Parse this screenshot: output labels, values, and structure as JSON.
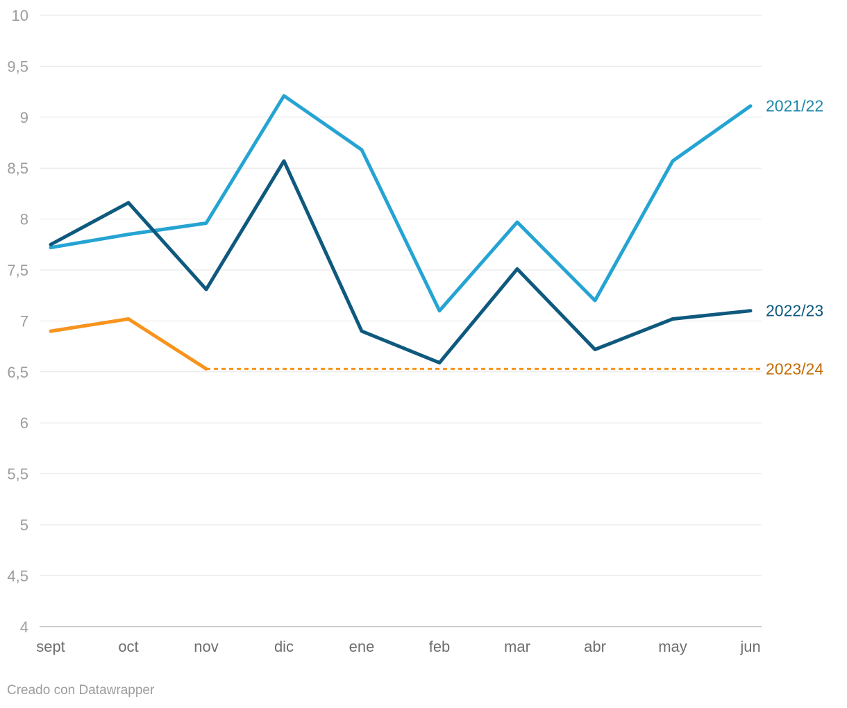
{
  "chart_data": {
    "type": "line",
    "title": "",
    "categories": [
      "sept",
      "oct",
      "nov",
      "dic",
      "ene",
      "feb",
      "mar",
      "abr",
      "may",
      "jun"
    ],
    "series": [
      {
        "name": "2021/22",
        "color": "#25a4d3",
        "label_color": "#1d87ab",
        "line_style": "solid",
        "values": [
          7.72,
          7.85,
          7.96,
          9.21,
          8.68,
          7.1,
          7.97,
          7.2,
          8.57,
          9.11
        ]
      },
      {
        "name": "2022/23",
        "color": "#0f597e",
        "label_color": "#0f597e",
        "line_style": "solid",
        "values": [
          7.75,
          8.16,
          7.31,
          8.57,
          6.9,
          6.59,
          7.51,
          6.72,
          7.02,
          7.1
        ]
      },
      {
        "name": "2023/24",
        "color": "#f7941e",
        "label_color": "#c26a00",
        "line_style": "solid-then-dotted",
        "values": [
          6.9,
          7.02,
          6.53
        ],
        "continuation": {
          "style": "dotted",
          "value": 6.53,
          "to_category": "jun"
        }
      }
    ],
    "ylim": [
      4,
      10
    ],
    "ytick_step": 0.5,
    "ytick_labels": [
      "10",
      "9,5",
      "9",
      "8,5",
      "8",
      "7,5",
      "7",
      "6,5",
      "6",
      "5,5",
      "5",
      "4,5",
      "4"
    ],
    "decimal_separator": ",",
    "grid": "on",
    "legend_position": "right-of-line-end",
    "colors": {
      "gridline": "#e4e4e4",
      "baseline": "#c8c8c8",
      "y_tick_label": "#9d9d9d",
      "x_tick_label": "#6e6e6e"
    }
  },
  "footer": {
    "credit": "Creado con Datawrapper"
  }
}
